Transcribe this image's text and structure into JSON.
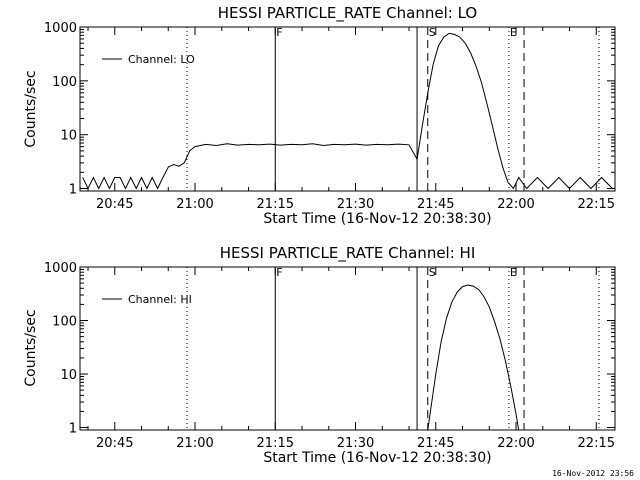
{
  "footer_timestamp": "16-Nov-2012 23:56",
  "chart_data": [
    {
      "type": "line",
      "title": "HESSI PARTICLE_RATE Channel: LO",
      "xlabel": "Start Time (16-Nov-12 20:38:30)",
      "ylabel": "Counts/sec",
      "yscale": "log",
      "ylim": [
        0.9,
        1000
      ],
      "xlim": [
        "20:38:30",
        "22:18:30"
      ],
      "x_ticks": [
        "20:45",
        "21:00",
        "21:15",
        "21:30",
        "21:45",
        "22:00",
        "22:15"
      ],
      "y_ticks": [
        "1",
        "10",
        "100",
        "1000"
      ],
      "legend": {
        "placement": "top-left",
        "entries": [
          "Channel: LO"
        ]
      },
      "markers": [
        {
          "label": "F",
          "time": "21:15:00",
          "style": "solid"
        },
        {
          "label": "S",
          "time": "21:43:30",
          "style": "dashed"
        },
        {
          "label": "E",
          "time": "21:58:40",
          "style": "dotted"
        }
      ],
      "extra_lines": [
        {
          "time": "20:58:30",
          "style": "dotted"
        },
        {
          "time": "21:41:30",
          "style": "solid"
        },
        {
          "time": "22:01:30",
          "style": "dashed"
        },
        {
          "time": "22:15:30",
          "style": "dotted"
        }
      ],
      "series": [
        {
          "name": "Channel: LO",
          "x": [
            "20:39:00",
            "20:40:00",
            "20:41:00",
            "20:42:00",
            "20:43:00",
            "20:44:00",
            "20:45:00",
            "20:46:00",
            "20:47:00",
            "20:48:00",
            "20:49:00",
            "20:50:00",
            "20:51:00",
            "20:52:00",
            "20:53:00",
            "20:54:00",
            "20:55:00",
            "20:56:00",
            "20:57:00",
            "20:58:00",
            "20:59:00",
            "21:00:00",
            "21:02:00",
            "21:04:00",
            "21:06:00",
            "21:08:00",
            "21:10:00",
            "21:12:00",
            "21:14:00",
            "21:16:00",
            "21:18:00",
            "21:20:00",
            "21:22:00",
            "21:24:00",
            "21:26:00",
            "21:28:00",
            "21:30:00",
            "21:32:00",
            "21:34:00",
            "21:36:00",
            "21:38:00",
            "21:40:00",
            "21:41:30",
            "21:42:30",
            "21:43:30",
            "21:44:30",
            "21:45:30",
            "21:46:30",
            "21:47:30",
            "21:48:30",
            "21:49:30",
            "21:50:30",
            "21:51:30",
            "21:52:30",
            "21:53:30",
            "21:54:30",
            "21:55:30",
            "21:56:30",
            "21:57:30",
            "21:58:30",
            "21:59:30",
            "22:00:30",
            "22:02:00",
            "22:04:00",
            "22:06:00",
            "22:08:00",
            "22:10:00",
            "22:12:00",
            "22:14:00",
            "22:16:00",
            "22:18:00"
          ],
          "y": [
            1.6,
            1,
            1.6,
            1,
            1.6,
            1,
            1.6,
            1.6,
            1,
            1.6,
            1,
            1.6,
            1,
            1.6,
            1,
            1.6,
            2.5,
            2.8,
            2.6,
            3.0,
            5.0,
            6.0,
            6.6,
            6.3,
            6.8,
            6.4,
            6.6,
            6.5,
            6.7,
            6.4,
            6.6,
            6.5,
            6.8,
            6.3,
            6.6,
            6.5,
            6.7,
            6.4,
            6.6,
            6.5,
            6.7,
            6.5,
            3.5,
            15,
            60,
            200,
            450,
            650,
            760,
            730,
            650,
            500,
            330,
            190,
            95,
            40,
            16,
            6,
            2.5,
            1.3,
            1,
            1.6,
            1,
            1.6,
            1,
            1.6,
            1,
            1.6,
            1,
            1.6,
            1
          ]
        }
      ]
    },
    {
      "type": "line",
      "title": "HESSI PARTICLE_RATE Channel: HI",
      "xlabel": "Start Time (16-Nov-12 20:38:30)",
      "ylabel": "Counts/sec",
      "yscale": "log",
      "ylim": [
        0.9,
        1000
      ],
      "xlim": [
        "20:38:30",
        "22:18:30"
      ],
      "x_ticks": [
        "20:45",
        "21:00",
        "21:15",
        "21:30",
        "21:45",
        "22:00",
        "22:15"
      ],
      "y_ticks": [
        "1",
        "10",
        "100",
        "1000"
      ],
      "legend": {
        "placement": "top-left",
        "entries": [
          "Channel: HI"
        ]
      },
      "markers": [
        {
          "label": "F",
          "time": "21:15:00",
          "style": "solid"
        },
        {
          "label": "S",
          "time": "21:43:30",
          "style": "dashed"
        },
        {
          "label": "E",
          "time": "21:58:40",
          "style": "dotted"
        }
      ],
      "extra_lines": [
        {
          "time": "20:58:30",
          "style": "dotted"
        },
        {
          "time": "21:41:30",
          "style": "solid"
        },
        {
          "time": "22:01:30",
          "style": "dashed"
        },
        {
          "time": "22:15:30",
          "style": "dotted"
        }
      ],
      "series": [
        {
          "name": "Channel: HI",
          "x": [
            "21:43:30",
            "21:44:00",
            "21:45:00",
            "21:46:00",
            "21:47:00",
            "21:48:00",
            "21:49:00",
            "21:50:00",
            "21:51:00",
            "21:52:00",
            "21:53:00",
            "21:54:00",
            "21:55:00",
            "21:56:00",
            "21:57:00",
            "21:58:00",
            "21:59:00",
            "22:00:00",
            "22:00:30"
          ],
          "y": [
            0.9,
            2,
            10,
            40,
            110,
            220,
            340,
            430,
            460,
            440,
            380,
            280,
            180,
            95,
            45,
            18,
            6,
            1.8,
            0.9
          ]
        }
      ]
    }
  ]
}
